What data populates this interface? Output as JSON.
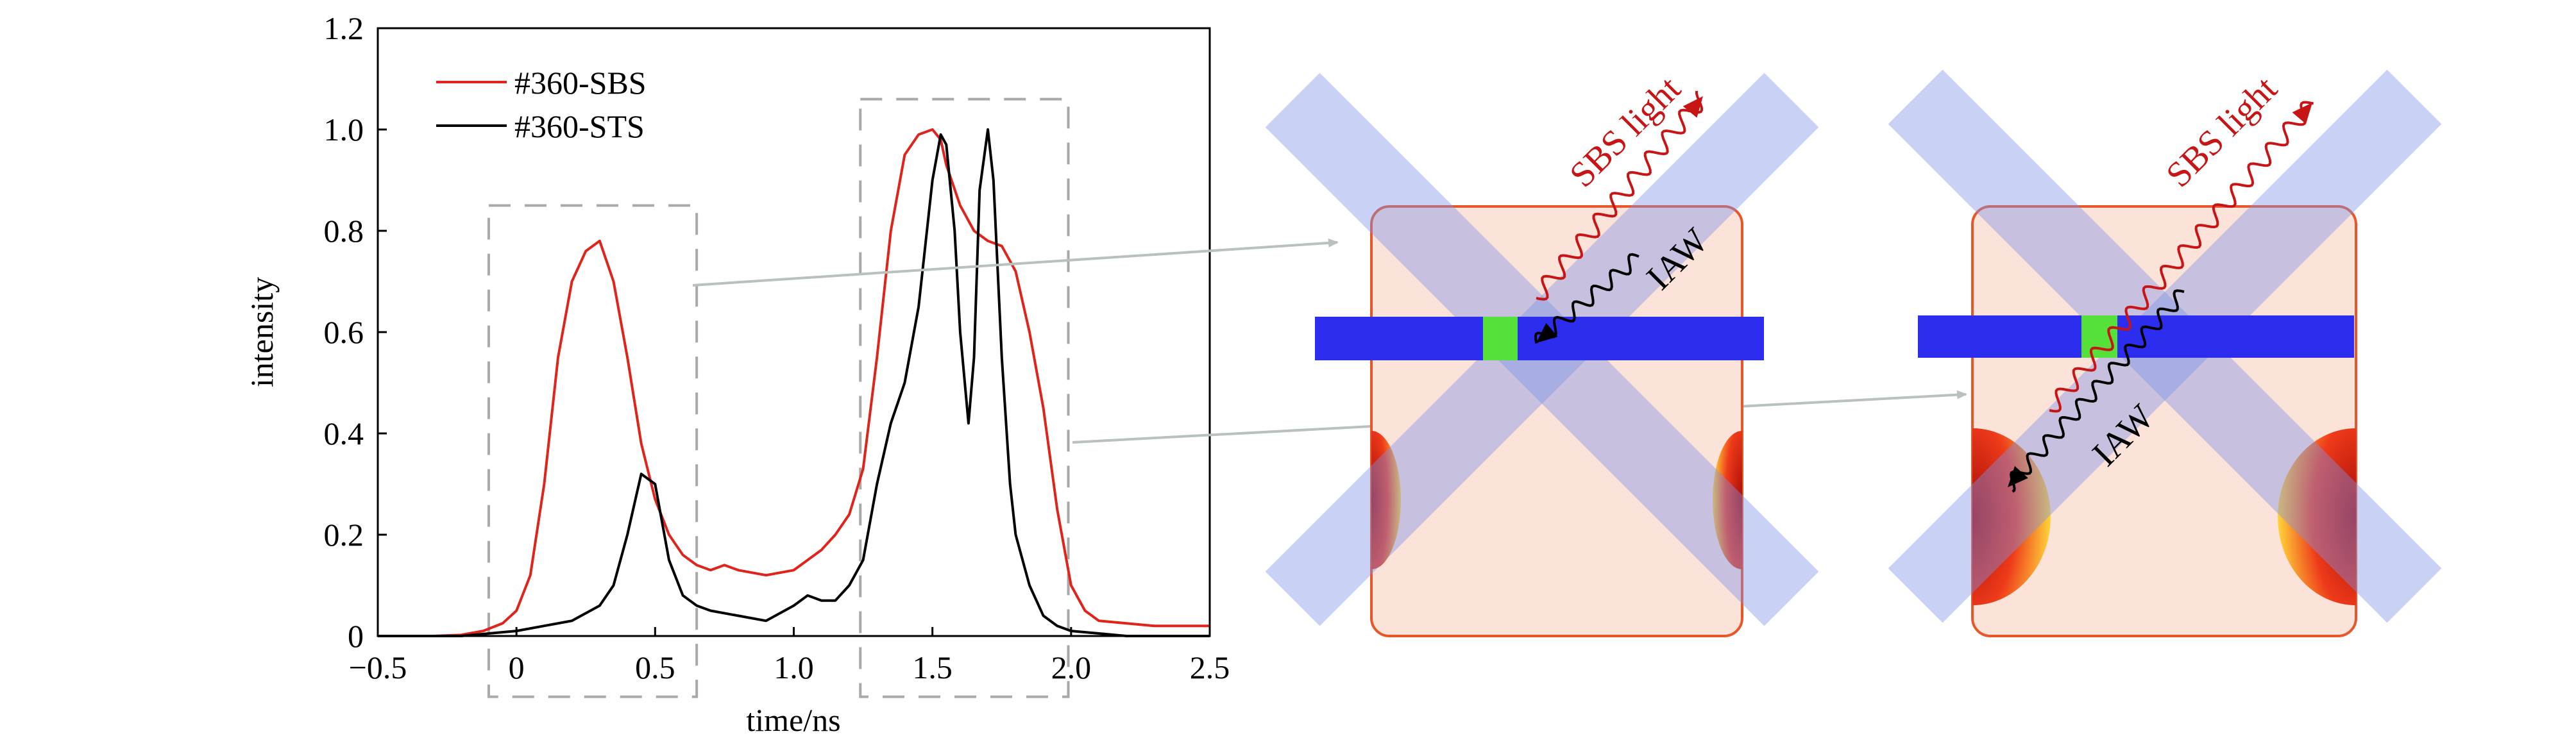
{
  "chart_data": {
    "type": "line",
    "xlabel": "time/ns",
    "ylabel": "intensity",
    "xlim": [
      -0.5,
      2.5
    ],
    "ylim": [
      0,
      1.2
    ],
    "x_ticks": [
      "−0.5",
      "0",
      "0.5",
      "1.0",
      "1.5",
      "2.0",
      "2.5"
    ],
    "x_tick_values": [
      -0.5,
      0,
      0.5,
      1.0,
      1.5,
      2.0,
      2.5
    ],
    "y_ticks": [
      "0",
      "0.2",
      "0.4",
      "0.6",
      "0.8",
      "1.0",
      "1.2"
    ],
    "y_tick_values": [
      0,
      0.2,
      0.4,
      0.6,
      0.8,
      1.0,
      1.2
    ],
    "grid": false,
    "legend_position": "top-left",
    "series": [
      {
        "name": "#360-SBS",
        "color": "#e0231b",
        "x": [
          -0.5,
          -0.3,
          -0.2,
          -0.12,
          -0.05,
          0,
          0.05,
          0.1,
          0.15,
          0.2,
          0.25,
          0.3,
          0.35,
          0.4,
          0.45,
          0.5,
          0.55,
          0.6,
          0.65,
          0.7,
          0.75,
          0.8,
          0.9,
          1.0,
          1.05,
          1.1,
          1.15,
          1.2,
          1.25,
          1.3,
          1.35,
          1.4,
          1.45,
          1.5,
          1.53,
          1.55,
          1.6,
          1.65,
          1.7,
          1.75,
          1.8,
          1.85,
          1.9,
          1.95,
          2.0,
          2.05,
          2.1,
          2.2,
          2.3,
          2.4,
          2.5
        ],
        "values": [
          0,
          0,
          0.002,
          0.01,
          0.025,
          0.05,
          0.12,
          0.3,
          0.55,
          0.7,
          0.76,
          0.78,
          0.7,
          0.55,
          0.38,
          0.27,
          0.2,
          0.16,
          0.14,
          0.13,
          0.14,
          0.13,
          0.12,
          0.13,
          0.15,
          0.17,
          0.2,
          0.24,
          0.33,
          0.55,
          0.8,
          0.95,
          0.99,
          1.0,
          0.98,
          0.93,
          0.85,
          0.8,
          0.78,
          0.77,
          0.72,
          0.6,
          0.45,
          0.25,
          0.1,
          0.05,
          0.03,
          0.025,
          0.02,
          0.02,
          0.02
        ]
      },
      {
        "name": "#360-STS",
        "color": "#000000",
        "x": [
          -0.5,
          -0.2,
          0,
          0.1,
          0.2,
          0.3,
          0.35,
          0.4,
          0.45,
          0.5,
          0.55,
          0.6,
          0.65,
          0.7,
          0.8,
          0.9,
          1.0,
          1.05,
          1.1,
          1.15,
          1.2,
          1.25,
          1.3,
          1.35,
          1.4,
          1.45,
          1.5,
          1.53,
          1.55,
          1.58,
          1.6,
          1.63,
          1.65,
          1.67,
          1.7,
          1.72,
          1.75,
          1.78,
          1.8,
          1.85,
          1.9,
          1.95,
          2.0,
          2.1,
          2.2,
          2.5
        ],
        "values": [
          0,
          0,
          0.01,
          0.02,
          0.03,
          0.06,
          0.1,
          0.2,
          0.32,
          0.3,
          0.15,
          0.08,
          0.06,
          0.05,
          0.04,
          0.03,
          0.06,
          0.08,
          0.07,
          0.07,
          0.1,
          0.15,
          0.3,
          0.42,
          0.5,
          0.65,
          0.9,
          0.99,
          0.97,
          0.8,
          0.6,
          0.42,
          0.55,
          0.88,
          1.0,
          0.9,
          0.55,
          0.3,
          0.2,
          0.1,
          0.04,
          0.02,
          0.01,
          0.005,
          0,
          0
        ]
      }
    ],
    "annotation_boxes": [
      {
        "x0": -0.1,
        "x1": 0.65,
        "y0": -0.12,
        "y1": 0.85
      },
      {
        "x0": 1.24,
        "x1": 1.99,
        "y0": -0.12,
        "y1": 1.06
      }
    ]
  },
  "diagrams": [
    {
      "sbs_label": "SBS light",
      "iaw_label": "IAW"
    },
    {
      "sbs_label": "SBS light",
      "iaw_label": "IAW"
    }
  ],
  "colors": {
    "chamber_fill": "#fce3da",
    "chamber_border": "#e8562a",
    "beam_fill": "#7f92e6",
    "bar_fill": "#2d2df0",
    "green_fill": "#56e03a",
    "sbs_wave": "#c81414",
    "iaw_wave": "#000000",
    "dash_box": "#a9a9a9",
    "arrow": "#b8c1bd"
  }
}
